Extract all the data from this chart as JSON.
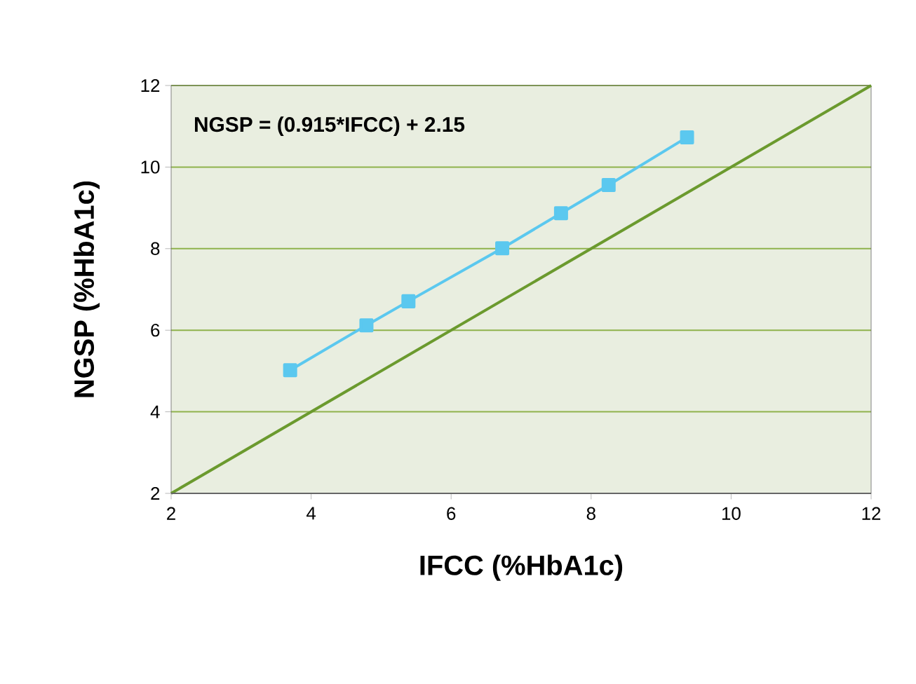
{
  "chart_data": {
    "type": "line",
    "xlabel": "IFCC (%HbA1c)",
    "ylabel": "NGSP (%HbA1c)",
    "xlim": [
      2,
      12
    ],
    "ylim": [
      2,
      12
    ],
    "xticks": [
      2,
      4,
      6,
      8,
      10,
      12
    ],
    "yticks": [
      2,
      4,
      6,
      8,
      10,
      12
    ],
    "grid": "y",
    "annotations": [
      "NGSP = (0.915*IFCC) + 2.15"
    ],
    "series": [
      {
        "color": "#6b9a2e",
        "marker": "none",
        "x": [
          2,
          12
        ],
        "values": [
          2,
          12
        ]
      },
      {
        "color": "#5bc8ef",
        "marker": "square",
        "x": [
          3.7,
          4.79,
          5.39,
          6.73,
          7.57,
          8.25,
          9.37
        ],
        "values": [
          5.02,
          6.12,
          6.71,
          8.01,
          8.87,
          9.56,
          10.73
        ]
      }
    ]
  }
}
